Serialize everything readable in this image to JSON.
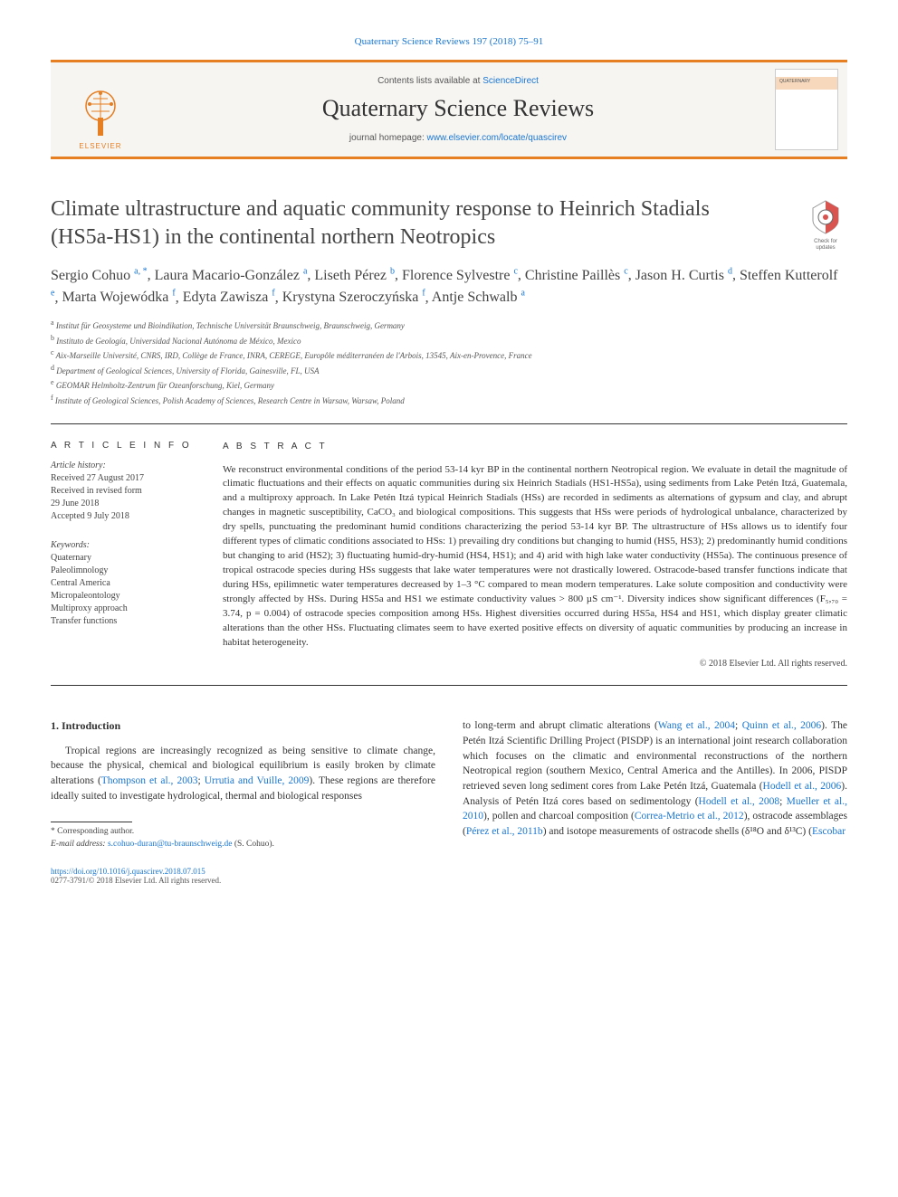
{
  "topLink": {
    "text": "Quaternary Science Reviews 197 (2018) 75–91",
    "href": "#"
  },
  "banner": {
    "contentsPrefix": "Contents lists available at ",
    "contentsLinkText": "ScienceDirect",
    "journalName": "Quaternary Science Reviews",
    "homepagePrefix": "journal homepage: ",
    "homepageLinkText": "www.elsevier.com/locate/quascirev",
    "publisherName": "ELSEVIER",
    "coverLabel": "QUATERNARY"
  },
  "colors": {
    "accent": "#e67e22",
    "link": "#1976d2",
    "text": "#2a2a2a",
    "muted": "#555555",
    "bannerBg": "#f7f5f2"
  },
  "checkUpdates": {
    "line1": "Check for",
    "line2": "updates"
  },
  "title": "Climate ultrastructure and aquatic community response to Heinrich Stadials (HS5a-HS1) in the continental northern Neotropics",
  "authors": [
    {
      "name": "Sergio Cohuo",
      "marks": "a, *"
    },
    {
      "name": "Laura Macario-González",
      "marks": "a"
    },
    {
      "name": "Liseth Pérez",
      "marks": "b"
    },
    {
      "name": "Florence Sylvestre",
      "marks": "c"
    },
    {
      "name": "Christine Paillès",
      "marks": "c"
    },
    {
      "name": "Jason H. Curtis",
      "marks": "d"
    },
    {
      "name": "Steffen Kutterolf",
      "marks": "e"
    },
    {
      "name": "Marta Wojewódka",
      "marks": "f"
    },
    {
      "name": "Edyta Zawisza",
      "marks": "f"
    },
    {
      "name": "Krystyna Szeroczyńska",
      "marks": "f"
    },
    {
      "name": "Antje Schwalb",
      "marks": "a"
    }
  ],
  "affiliations": [
    {
      "key": "a",
      "text": "Institut für Geosysteme und Bioindikation, Technische Universität Braunschweig, Braunschweig, Germany"
    },
    {
      "key": "b",
      "text": "Instituto de Geología, Universidad Nacional Autónoma de México, Mexico"
    },
    {
      "key": "c",
      "text": "Aix-Marseille Université, CNRS, IRD, Collège de France, INRA, CEREGE, Europôle méditerranéen de l'Arbois, 13545, Aix-en-Provence, France"
    },
    {
      "key": "d",
      "text": "Department of Geological Sciences, University of Florida, Gainesville, FL, USA"
    },
    {
      "key": "e",
      "text": "GEOMAR Helmholtz-Zentrum für Ozeanforschung, Kiel, Germany"
    },
    {
      "key": "f",
      "text": "Institute of Geological Sciences, Polish Academy of Sciences, Research Centre in Warsaw, Warsaw, Poland"
    }
  ],
  "articleInfo": {
    "heading": "A R T I C L E   I N F O",
    "historyLabel": "Article history:",
    "received": "Received 27 August 2017",
    "revised1": "Received in revised form",
    "revised2": "29 June 2018",
    "accepted": "Accepted 9 July 2018",
    "keywordsLabel": "Keywords:",
    "keywords": [
      "Quaternary",
      "Paleolimnology",
      "Central America",
      "Micropaleontology",
      "Multiproxy approach",
      "Transfer functions"
    ]
  },
  "abstract": {
    "heading": "A B S T R A C T",
    "text": "We reconstruct environmental conditions of the period 53-14 kyr BP in the continental northern Neotropical region. We evaluate in detail the magnitude of climatic fluctuations and their effects on aquatic communities during six Heinrich Stadials (HS1-HS5a), using sediments from Lake Petén Itzá, Guatemala, and a multiproxy approach. In Lake Petén Itzá typical Heinrich Stadials (HSs) are recorded in sediments as alternations of gypsum and clay, and abrupt changes in magnetic susceptibility, CaCO₃ and biological compositions. This suggests that HSs were periods of hydrological unbalance, characterized by dry spells, punctuating the predominant humid conditions characterizing the period 53-14 kyr BP. The ultrastructure of HSs allows us to identify four different types of climatic conditions associated to HSs: 1) prevailing dry conditions but changing to humid (HS5, HS3); 2) predominantly humid conditions but changing to arid (HS2); 3) fluctuating humid-dry-humid (HS4, HS1); and 4) arid with high lake water conductivity (HS5a). The continuous presence of tropical ostracode species during HSs suggests that lake water temperatures were not drastically lowered. Ostracode-based transfer functions indicate that during HSs, epilimnetic water temperatures decreased by 1–3 °C compared to mean modern temperatures. Lake solute composition and conductivity were strongly affected by HSs. During HS5a and HS1 we estimate conductivity values > 800 µS cm⁻¹. Diversity indices show significant differences (F₅,₇₀ = 3.74, p = 0.004) of ostracode species composition among HSs. Highest diversities occurred during HS5a, HS4 and HS1, which display greater climatic alterations than the other HSs. Fluctuating climates seem to have exerted positive effects on diversity of aquatic communities by producing an increase in habitat heterogeneity.",
    "copyright": "© 2018 Elsevier Ltd. All rights reserved."
  },
  "intro": {
    "heading": "1. Introduction",
    "col1p1_a": "Tropical regions are increasingly recognized as being sensitive to climate change, because the physical, chemical and biological equilibrium is easily broken by climate alterations (",
    "col1p1_link1": "Thompson et al., 2003",
    "col1p1_b": "; ",
    "col1p1_link2": "Urrutia and Vuille, 2009",
    "col1p1_c": "). These regions are therefore ideally suited to investigate hydrological, thermal and biological responses",
    "col2p1_a": "to long-term and abrupt climatic alterations (",
    "col2p1_link1": "Wang et al., 2004",
    "col2p1_b": "; ",
    "col2p1_link2": "Quinn et al., 2006",
    "col2p1_c": "). The Petén Itzá Scientific Drilling Project (PISDP) is an international joint research collaboration which focuses on the climatic and environmental reconstructions of the northern Neotropical region (southern Mexico, Central America and the Antilles). In 2006, PISDP retrieved seven long sediment cores from Lake Petén Itzá, Guatemala (",
    "col2p1_link3": "Hodell et al., 2006",
    "col2p1_d": "). Analysis of Petén Itzá cores based on sedimentology (",
    "col2p1_link4": "Hodell et al., 2008",
    "col2p1_e": "; ",
    "col2p1_link5": "Mueller et al., 2010",
    "col2p1_f": "), pollen and charcoal composition (",
    "col2p1_link6": "Correa-Metrio et al., 2012",
    "col2p1_g": "), ostracode assemblages (",
    "col2p1_link7": "Pérez et al., 2011b",
    "col2p1_h": ") and isotope measurements of ostracode shells (δ¹⁸O and δ¹³C) (",
    "col2p1_link8": "Escobar"
  },
  "footnotes": {
    "corrLabel": "* Corresponding author.",
    "emailLabel": "E-mail address: ",
    "email": "s.cohuo-duran@tu-braunschweig.de",
    "emailSuffix": " (S. Cohuo)."
  },
  "bottom": {
    "doi": "https://doi.org/10.1016/j.quascirev.2018.07.015",
    "issn": "0277-3791/© 2018 Elsevier Ltd. All rights reserved."
  }
}
